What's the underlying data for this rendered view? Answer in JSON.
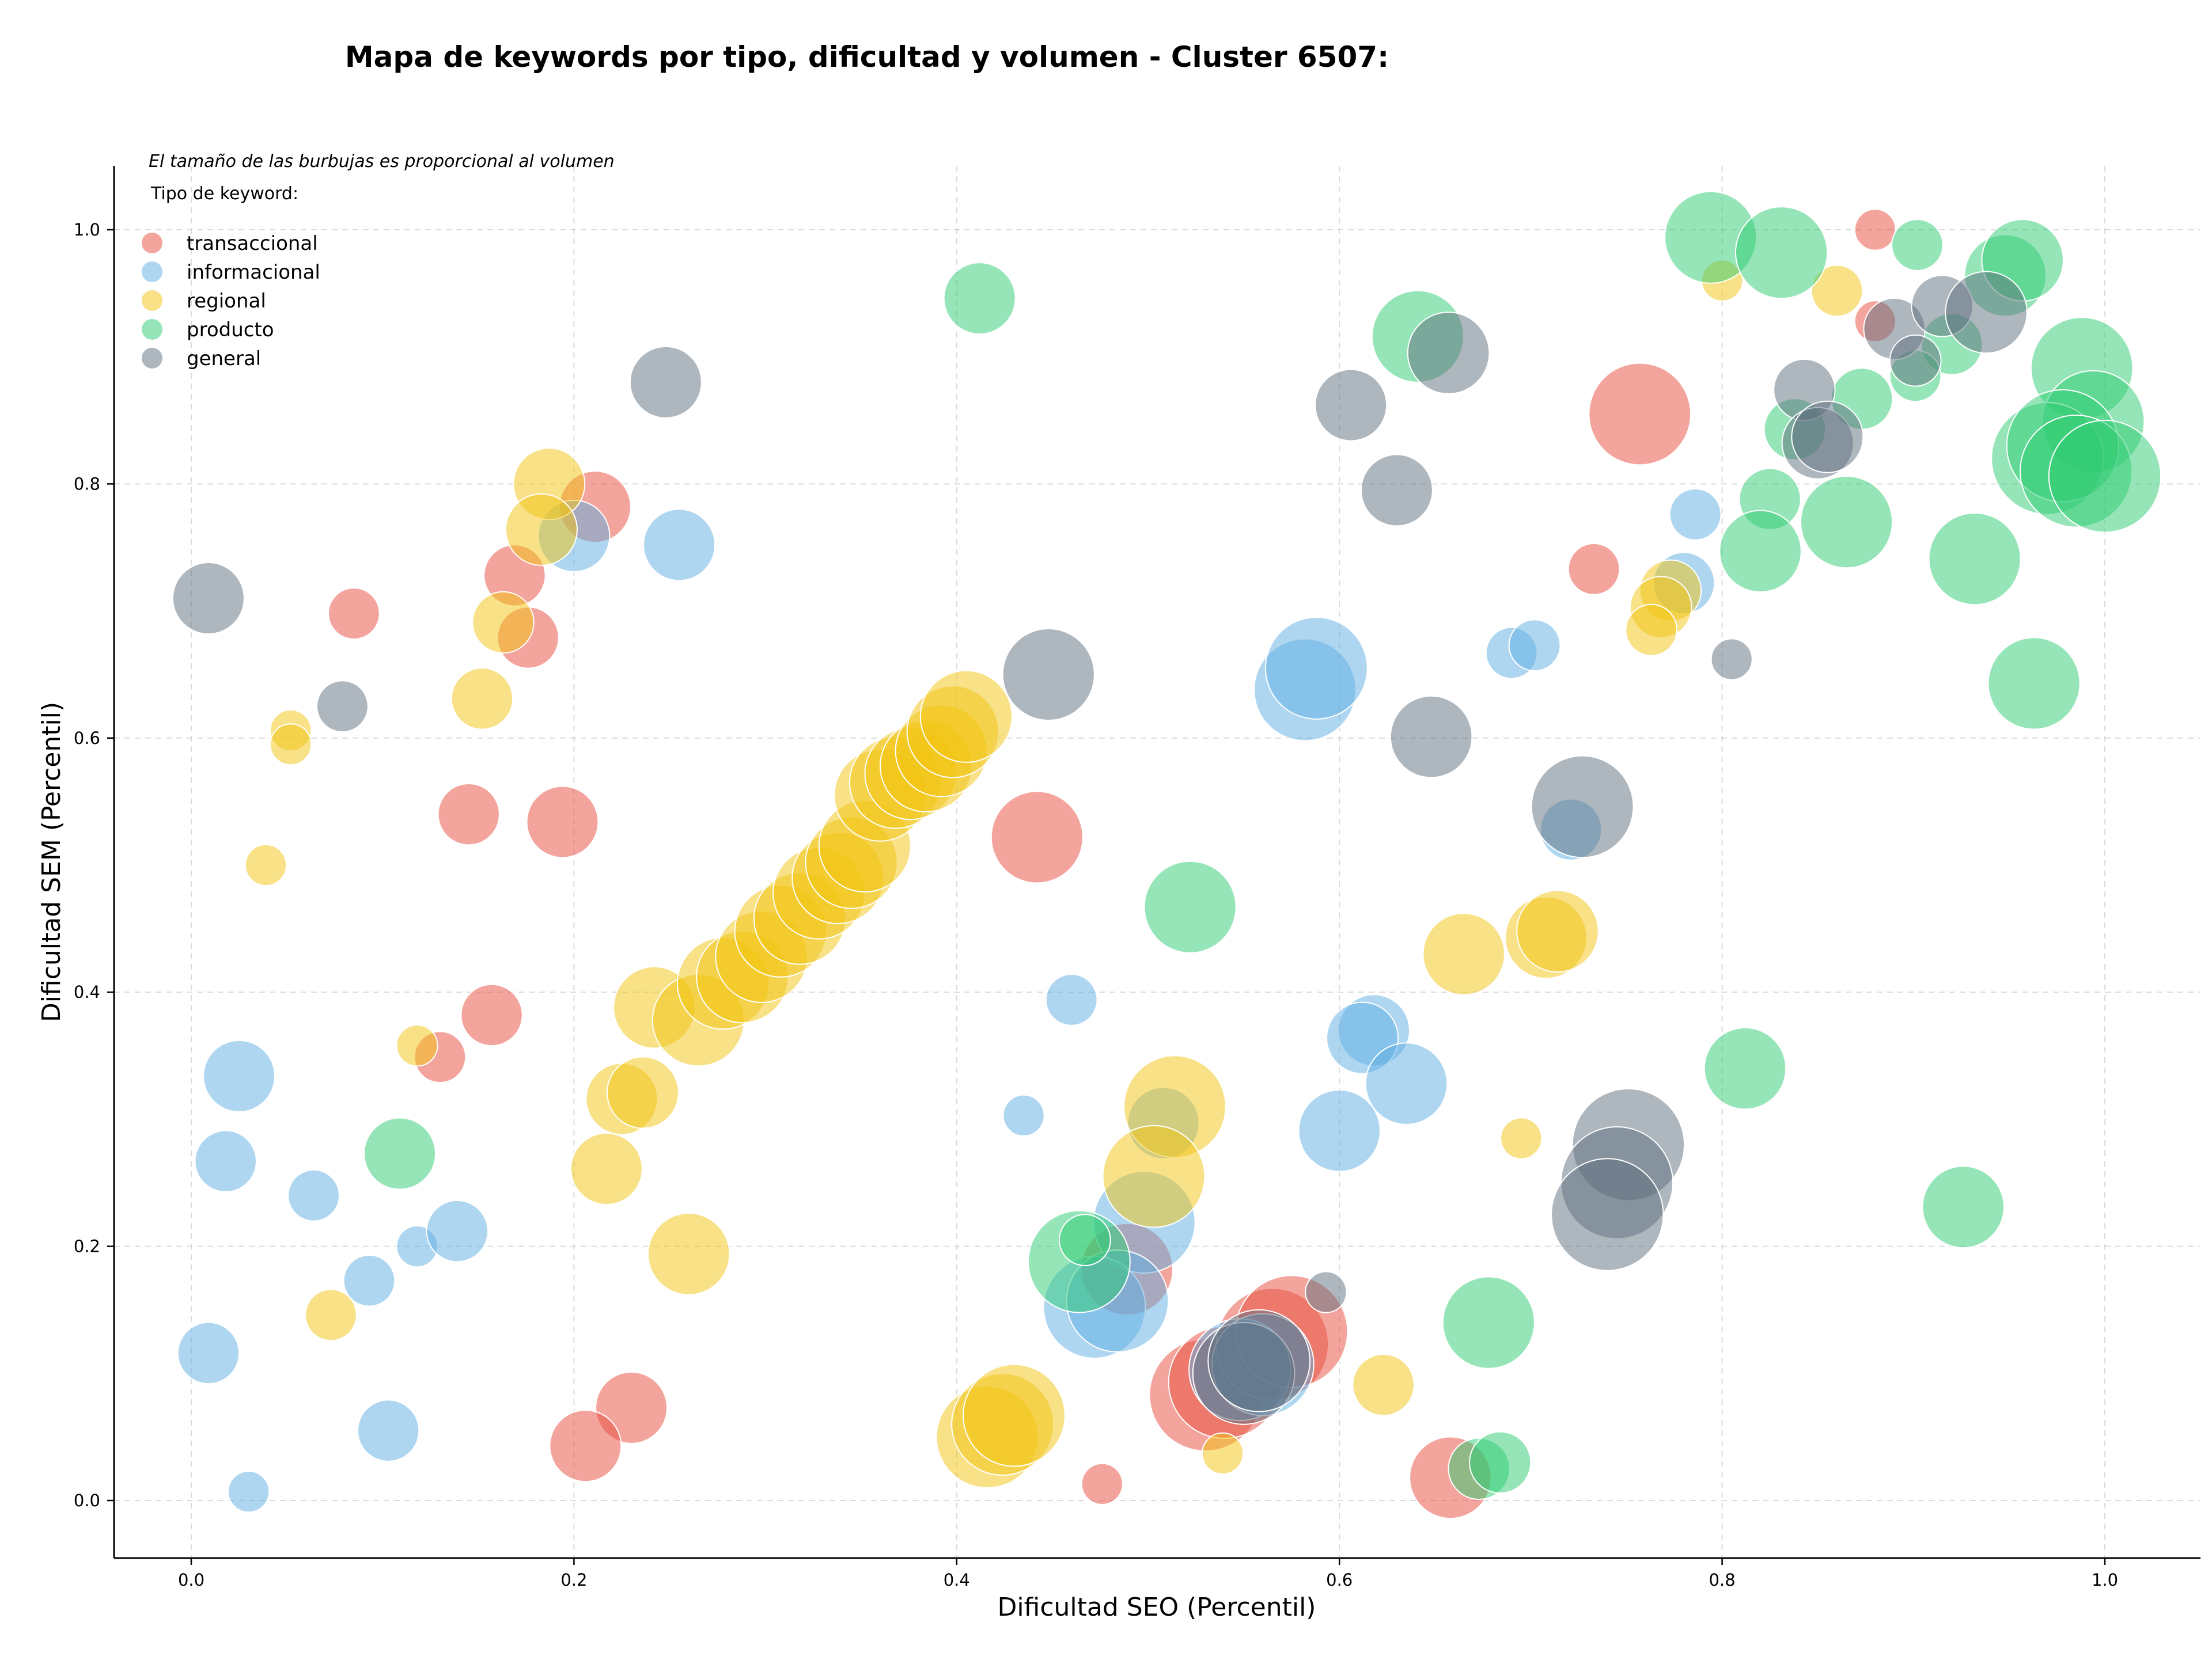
{
  "chart_data": {
    "type": "scatter",
    "title": "Mapa de keywords por tipo, dificultad y volumen - Cluster 6507:",
    "xlabel": "Dificultad SEO (Percentil)",
    "ylabel": "Dificultad SEM (Percentil)",
    "xlim": [
      -0.04,
      1.05
    ],
    "ylim": [
      -0.04,
      1.05
    ],
    "xticks": [
      "0.0",
      "0.2",
      "0.4",
      "0.6",
      "0.8",
      "1.0"
    ],
    "yticks": [
      "0.0",
      "0.2",
      "0.4",
      "0.6",
      "0.8",
      "1.0"
    ],
    "grid": true,
    "note": "El tamaño de las burbujas es proporcional al volumen",
    "legend_title": "Tipo de keyword:",
    "legend_position": "top-left",
    "size_encoding": "volumen",
    "series": [
      {
        "name": "transaccional",
        "color": "#e74c3c",
        "points": [
          [
            0.88,
            1.0,
            2
          ],
          [
            0.88,
            0.928,
            2
          ],
          [
            0.757,
            0.855,
            8
          ],
          [
            0.733,
            0.733,
            3
          ],
          [
            0.211,
            0.782,
            5
          ],
          [
            0.169,
            0.728,
            4
          ],
          [
            0.085,
            0.698,
            3
          ],
          [
            0.176,
            0.679,
            4
          ],
          [
            0.145,
            0.54,
            4
          ],
          [
            0.194,
            0.534,
            5
          ],
          [
            0.442,
            0.522,
            7
          ],
          [
            0.157,
            0.382,
            4
          ],
          [
            0.13,
            0.349,
            3
          ],
          [
            0.489,
            0.182,
            7
          ],
          [
            0.23,
            0.073,
            5
          ],
          [
            0.206,
            0.043,
            5
          ],
          [
            0.476,
            0.013,
            2
          ],
          [
            0.658,
            0.018,
            6
          ],
          [
            0.53,
            0.083,
            9
          ],
          [
            0.54,
            0.093,
            9
          ],
          [
            0.565,
            0.123,
            9
          ],
          [
            0.575,
            0.133,
            9
          ]
        ]
      },
      {
        "name": "informacional",
        "color": "#5dade2",
        "points": [
          [
            0.2,
            0.759,
            5
          ],
          [
            0.255,
            0.752,
            5
          ],
          [
            0.786,
            0.776,
            3
          ],
          [
            0.78,
            0.722,
            4
          ],
          [
            0.69,
            0.667,
            3
          ],
          [
            0.702,
            0.673,
            3
          ],
          [
            0.582,
            0.638,
            8
          ],
          [
            0.588,
            0.655,
            8
          ],
          [
            0.721,
            0.528,
            4
          ],
          [
            0.46,
            0.394,
            3
          ],
          [
            0.618,
            0.37,
            5
          ],
          [
            0.612,
            0.364,
            5
          ],
          [
            0.635,
            0.328,
            6
          ],
          [
            0.6,
            0.291,
            6
          ],
          [
            0.508,
            0.297,
            5
          ],
          [
            0.498,
            0.219,
            8
          ],
          [
            0.435,
            0.303,
            2
          ],
          [
            0.472,
            0.152,
            8
          ],
          [
            0.484,
            0.157,
            8
          ],
          [
            0.548,
            0.103,
            8
          ],
          [
            0.56,
            0.107,
            8
          ],
          [
            0.025,
            0.334,
            5
          ],
          [
            0.018,
            0.267,
            4
          ],
          [
            0.064,
            0.24,
            3
          ],
          [
            0.093,
            0.173,
            3
          ],
          [
            0.118,
            0.2,
            2
          ],
          [
            0.139,
            0.212,
            4
          ],
          [
            0.009,
            0.116,
            4
          ],
          [
            0.103,
            0.055,
            4
          ],
          [
            0.03,
            0.007,
            2
          ]
        ]
      },
      {
        "name": "regional",
        "color": "#f1c40f",
        "points": [
          [
            0.8,
            0.96,
            2
          ],
          [
            0.86,
            0.952,
            3
          ],
          [
            0.773,
            0.716,
            4
          ],
          [
            0.768,
            0.703,
            4
          ],
          [
            0.763,
            0.685,
            3
          ],
          [
            0.187,
            0.8,
            5
          ],
          [
            0.183,
            0.764,
            5
          ],
          [
            0.163,
            0.691,
            4
          ],
          [
            0.152,
            0.631,
            4
          ],
          [
            0.052,
            0.606,
            2
          ],
          [
            0.052,
            0.595,
            2
          ],
          [
            0.039,
            0.5,
            2
          ],
          [
            0.118,
            0.358,
            2
          ],
          [
            0.665,
            0.43,
            6
          ],
          [
            0.708,
            0.443,
            6
          ],
          [
            0.714,
            0.448,
            6
          ],
          [
            0.514,
            0.31,
            8
          ],
          [
            0.503,
            0.255,
            8
          ],
          [
            0.695,
            0.285,
            2
          ],
          [
            0.26,
            0.194,
            6
          ],
          [
            0.217,
            0.261,
            5
          ],
          [
            0.225,
            0.316,
            5
          ],
          [
            0.236,
            0.321,
            5
          ],
          [
            0.073,
            0.146,
            3
          ],
          [
            0.623,
            0.091,
            4
          ],
          [
            0.539,
            0.037,
            2
          ],
          [
            0.416,
            0.05,
            8
          ],
          [
            0.424,
            0.06,
            8
          ],
          [
            0.43,
            0.067,
            8
          ],
          [
            0.242,
            0.388,
            6
          ],
          [
            0.265,
            0.378,
            7
          ],
          [
            0.278,
            0.407,
            7
          ],
          [
            0.288,
            0.412,
            7
          ],
          [
            0.298,
            0.428,
            7
          ],
          [
            0.308,
            0.448,
            7
          ],
          [
            0.318,
            0.458,
            7
          ],
          [
            0.328,
            0.478,
            7
          ],
          [
            0.338,
            0.49,
            7
          ],
          [
            0.345,
            0.502,
            7
          ],
          [
            0.352,
            0.515,
            7
          ],
          [
            0.36,
            0.555,
            7
          ],
          [
            0.368,
            0.565,
            7
          ],
          [
            0.376,
            0.572,
            7
          ],
          [
            0.384,
            0.578,
            7
          ],
          [
            0.392,
            0.59,
            7
          ],
          [
            0.398,
            0.605,
            7
          ],
          [
            0.405,
            0.617,
            7
          ]
        ]
      },
      {
        "name": "producto",
        "color": "#2ecc71",
        "points": [
          [
            0.412,
            0.946,
            5
          ],
          [
            0.794,
            0.994,
            7
          ],
          [
            0.831,
            0.982,
            7
          ],
          [
            0.902,
            0.988,
            3
          ],
          [
            0.948,
            0.964,
            6
          ],
          [
            0.957,
            0.976,
            6
          ],
          [
            0.641,
            0.916,
            7
          ],
          [
            0.92,
            0.91,
            4
          ],
          [
            0.901,
            0.885,
            3
          ],
          [
            0.988,
            0.891,
            8
          ],
          [
            0.994,
            0.849,
            8
          ],
          [
            0.838,
            0.843,
            4
          ],
          [
            0.873,
            0.867,
            4
          ],
          [
            0.865,
            0.77,
            7
          ],
          [
            0.825,
            0.788,
            4
          ],
          [
            0.82,
            0.747,
            6
          ],
          [
            0.932,
            0.741,
            7
          ],
          [
            0.97,
            0.82,
            9
          ],
          [
            0.978,
            0.83,
            9
          ],
          [
            0.985,
            0.81,
            9
          ],
          [
            1.0,
            0.806,
            9
          ],
          [
            0.963,
            0.643,
            7
          ],
          [
            0.522,
            0.467,
            7
          ],
          [
            0.812,
            0.34,
            6
          ],
          [
            0.926,
            0.231,
            6
          ],
          [
            0.464,
            0.188,
            8
          ],
          [
            0.467,
            0.205,
            3
          ],
          [
            0.678,
            0.14,
            7
          ],
          [
            0.673,
            0.025,
            4
          ],
          [
            0.684,
            0.03,
            4
          ],
          [
            0.109,
            0.273,
            5
          ]
        ]
      },
      {
        "name": "general",
        "color": "#5d6d7e",
        "points": [
          [
            0.248,
            0.88,
            5
          ],
          [
            0.009,
            0.71,
            5
          ],
          [
            0.079,
            0.625,
            3
          ],
          [
            0.448,
            0.65,
            7
          ],
          [
            0.657,
            0.903,
            6
          ],
          [
            0.606,
            0.862,
            5
          ],
          [
            0.63,
            0.795,
            5
          ],
          [
            0.648,
            0.601,
            6
          ],
          [
            0.727,
            0.546,
            8
          ],
          [
            0.805,
            0.662,
            2
          ],
          [
            0.89,
            0.922,
            4
          ],
          [
            0.915,
            0.94,
            4
          ],
          [
            0.938,
            0.935,
            6
          ],
          [
            0.843,
            0.874,
            4
          ],
          [
            0.85,
            0.832,
            5
          ],
          [
            0.855,
            0.837,
            5
          ],
          [
            0.901,
            0.897,
            3
          ],
          [
            0.751,
            0.28,
            9
          ],
          [
            0.745,
            0.25,
            9
          ],
          [
            0.74,
            0.225,
            9
          ],
          [
            0.593,
            0.164,
            2
          ],
          [
            0.55,
            0.1,
            8
          ],
          [
            0.558,
            0.11,
            8
          ]
        ]
      }
    ]
  }
}
